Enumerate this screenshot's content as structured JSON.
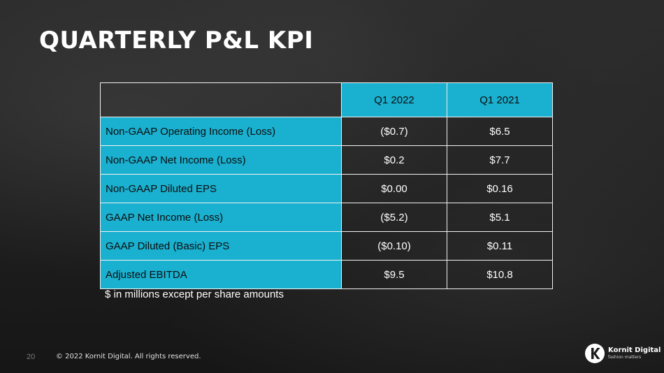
{
  "slide": {
    "title": "QUARTERLY P&L KPI",
    "note": "$ in millions except per share amounts",
    "page_number": "20",
    "copyright": "© 2022 Kornit Digital.  All rights reserved.",
    "logo": {
      "brand": "Kornit Digital",
      "tagline": "fashion matters",
      "icon": "kornit-k-logo-icon"
    }
  },
  "table": {
    "headers": [
      "",
      "Q1 2022",
      "Q1 2021"
    ],
    "rows": [
      {
        "label": "Non-GAAP Operating Income (Loss)",
        "q1_2022": "($0.7)",
        "q1_2021": "$6.5"
      },
      {
        "label": "Non-GAAP Net Income (Loss)",
        "q1_2022": "$0.2",
        "q1_2021": "$7.7"
      },
      {
        "label": "Non-GAAP Diluted EPS",
        "q1_2022": "$0.00",
        "q1_2021": "$0.16"
      },
      {
        "label": "GAAP Net Income (Loss)",
        "q1_2022": "($5.2)",
        "q1_2021": "$5.1"
      },
      {
        "label": "GAAP Diluted (Basic) EPS",
        "q1_2022": "($0.10)",
        "q1_2021": "$0.11"
      },
      {
        "label": "Adjusted EBITDA",
        "q1_2022": "$9.5",
        "q1_2021": "$10.8"
      }
    ]
  },
  "colors": {
    "accent": "#1ab0cf",
    "text": "#ffffff",
    "border": "#f2f2f2"
  }
}
